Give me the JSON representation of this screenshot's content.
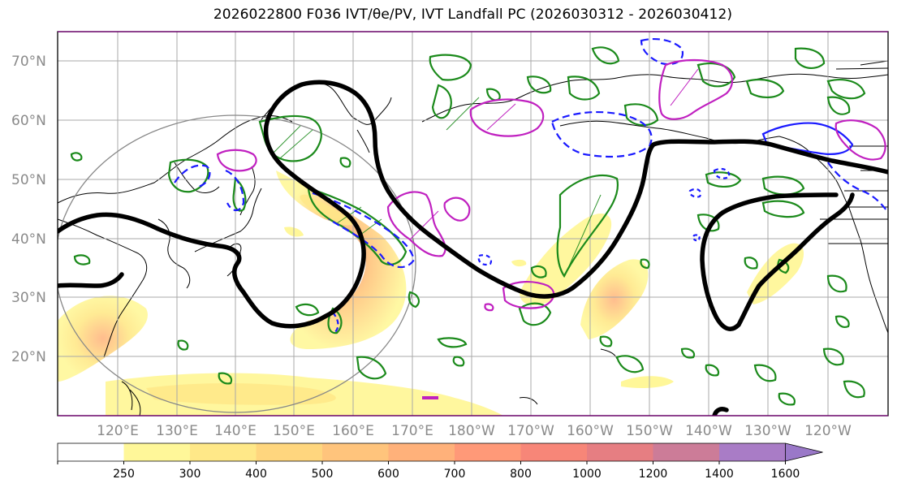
{
  "title": "2026022800 F036 IVT/θe/PV, IVT Landfall PC (2026030312 - 2026030412)",
  "latitude_labels": [
    "70°N",
    "60°N",
    "50°N",
    "40°N",
    "30°N",
    "20°N"
  ],
  "longitude_labels": [
    "120°E",
    "130°E",
    "140°E",
    "150°E",
    "160°E",
    "170°E",
    "180°W",
    "170°W",
    "160°W",
    "150°W",
    "140°W",
    "130°W",
    "120°W"
  ],
  "colorbar": {
    "ticks": [
      "250",
      "300",
      "400",
      "500",
      "600",
      "700",
      "800",
      "1000",
      "1200",
      "1400",
      "1600"
    ],
    "colors": [
      "#ffffff",
      "#fff799",
      "#ffe888",
      "#ffd67e",
      "#ffc47c",
      "#ffb17a",
      "#ff9978",
      "#f78678",
      "#e67e82",
      "#cc7c98",
      "#a97cc6"
    ]
  },
  "style": {
    "ivt_jet_color": "#000000",
    "green_contour_color": "#1b8a1b",
    "blue_contour_color": "#1a1aff",
    "magenta_contour_color": "#c020c0",
    "coast_color": "#000000",
    "grid_color": "#a8a8a8"
  }
}
